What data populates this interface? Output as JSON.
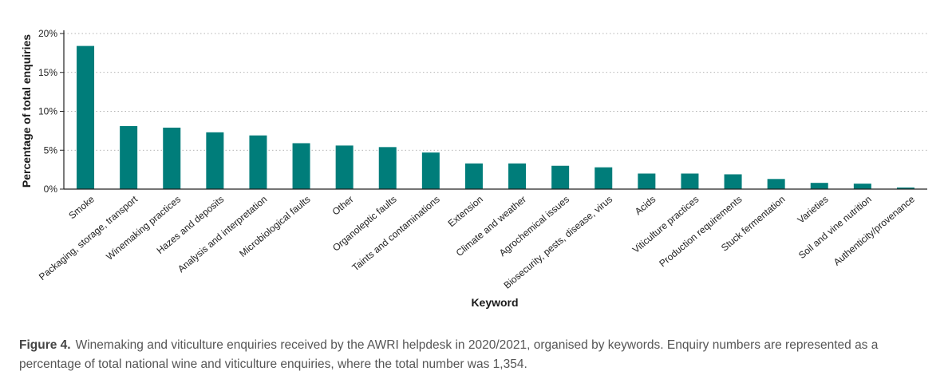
{
  "chart_data": {
    "type": "bar",
    "xlabel": "Keyword",
    "ylabel": "Percentage of total enquiries",
    "ylim": [
      0,
      20
    ],
    "yticks": [
      "0%",
      "5%",
      "10%",
      "15%",
      "20%"
    ],
    "grid": "horizontal dotted",
    "bar_color": "#007d7a",
    "categories": [
      "Smoke",
      "Packaging, storage, transport",
      "Winemaking practices",
      "Hazes and deposits",
      "Analysis and interpretation",
      "Microbiological faults",
      "Other",
      "Organoleptic faults",
      "Taints and contaminations",
      "Extension",
      "Climate and weather",
      "Agrochemical issues",
      "Biosecurity, pests, disease, virus",
      "Acids",
      "Viticulture practices",
      "Production requirements",
      "Stuck fermentation",
      "Varieties",
      "Soil and vine nutrition",
      "Authenticity/provenance"
    ],
    "values": [
      18.4,
      8.1,
      7.9,
      7.3,
      6.9,
      5.9,
      5.6,
      5.4,
      4.7,
      3.3,
      3.3,
      3.0,
      2.8,
      2.0,
      2.0,
      1.9,
      1.3,
      0.8,
      0.7,
      0.2
    ]
  },
  "caption": {
    "label": "Figure 4.",
    "text": "Winemaking and viticulture enquiries received by the AWRI helpdesk in 2020/2021, organised by keywords. Enquiry numbers are represented as a percentage of total national wine and viticulture enquiries, where the total number was 1,354."
  }
}
